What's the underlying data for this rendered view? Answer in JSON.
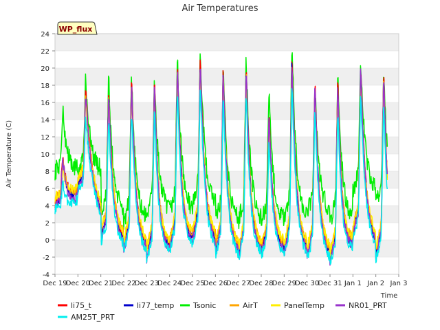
{
  "chart_data": {
    "type": "line",
    "title": "Air Temperatures",
    "xlabel": "Time",
    "ylabel": "Air Temperature (C)",
    "ylim": [
      -4,
      24
    ],
    "yticks": [
      -4,
      -2,
      0,
      2,
      4,
      6,
      8,
      10,
      12,
      14,
      16,
      18,
      20,
      22,
      24
    ],
    "xlim": [
      0,
      15
    ],
    "xticks": [
      {
        "pos": 0,
        "label": "Dec 19"
      },
      {
        "pos": 1,
        "label": "Dec 20"
      },
      {
        "pos": 2,
        "label": "Dec 21"
      },
      {
        "pos": 3,
        "label": "Dec 22"
      },
      {
        "pos": 4,
        "label": "Dec 23"
      },
      {
        "pos": 5,
        "label": "Dec 24"
      },
      {
        "pos": 6,
        "label": "Dec 25"
      },
      {
        "pos": 7,
        "label": "Dec 26"
      },
      {
        "pos": 8,
        "label": "Dec 27"
      },
      {
        "pos": 9,
        "label": "Dec 28"
      },
      {
        "pos": 10,
        "label": "Dec 29"
      },
      {
        "pos": 11,
        "label": "Dec 30"
      },
      {
        "pos": 12,
        "label": "Dec 31"
      },
      {
        "pos": 13,
        "label": "Jan 1"
      },
      {
        "pos": 14,
        "label": "Jan 2"
      },
      {
        "pos": 15,
        "label": "Jan 3"
      }
    ],
    "grid": "horizontal bands",
    "badge": "WP_flux",
    "legend_position": "bottom",
    "series": [
      {
        "name": "li75_t",
        "color": "#ff0000"
      },
      {
        "name": "li77_temp",
        "color": "#0000cc"
      },
      {
        "name": "Tsonic",
        "color": "#00ee00"
      },
      {
        "name": "AirT",
        "color": "#ffa500"
      },
      {
        "name": "PanelTemp",
        "color": "#ffee00"
      },
      {
        "name": "NR01_PRT",
        "color": "#9933cc"
      },
      {
        "name": "AM25T_PRT",
        "color": "#00eeee"
      }
    ],
    "daily": [
      {
        "day": "Dec 19",
        "min": 4,
        "max": 10,
        "tsonic_min": 8,
        "tsonic_max": 15
      },
      {
        "day": "Dec 20",
        "min": 6,
        "max": 18,
        "tsonic_min": 8,
        "tsonic_max": 19
      },
      {
        "day": "Dec 21",
        "min": 0,
        "max": 18,
        "tsonic_min": 3,
        "tsonic_max": 19
      },
      {
        "day": "Dec 22",
        "min": -1,
        "max": 19,
        "tsonic_min": 2,
        "tsonic_max": 19
      },
      {
        "day": "Dec 23",
        "min": -2,
        "max": 19,
        "tsonic_min": 3,
        "tsonic_max": 19
      },
      {
        "day": "Dec 24",
        "min": -1,
        "max": 21,
        "tsonic_min": 3,
        "tsonic_max": 21.5
      },
      {
        "day": "Dec 25",
        "min": 0,
        "max": 22,
        "tsonic_min": 4,
        "tsonic_max": 22.5
      },
      {
        "day": "Dec 26",
        "min": -1.5,
        "max": 20.5,
        "tsonic_min": 2,
        "tsonic_max": 20
      },
      {
        "day": "Dec 27",
        "min": -2,
        "max": 21,
        "tsonic_min": 2,
        "tsonic_max": 21.5
      },
      {
        "day": "Dec 28",
        "min": -1.5,
        "max": 15,
        "tsonic_min": 2,
        "tsonic_max": 17
      },
      {
        "day": "Dec 29",
        "min": -1.5,
        "max": 22,
        "tsonic_min": 2,
        "tsonic_max": 23.2
      },
      {
        "day": "Dec 30",
        "min": -2,
        "max": 19,
        "tsonic_min": 3,
        "tsonic_max": 18
      },
      {
        "day": "Dec 31",
        "min": -2.5,
        "max": 19,
        "tsonic_min": 2,
        "tsonic_max": 19.5
      },
      {
        "day": "Jan 1",
        "min": 0.5,
        "max": 21,
        "tsonic_min": 5.5,
        "tsonic_max": 21
      },
      {
        "day": "Jan 2",
        "min": -2,
        "max": 20,
        "tsonic_min": 4,
        "tsonic_max": 19.5
      }
    ]
  }
}
